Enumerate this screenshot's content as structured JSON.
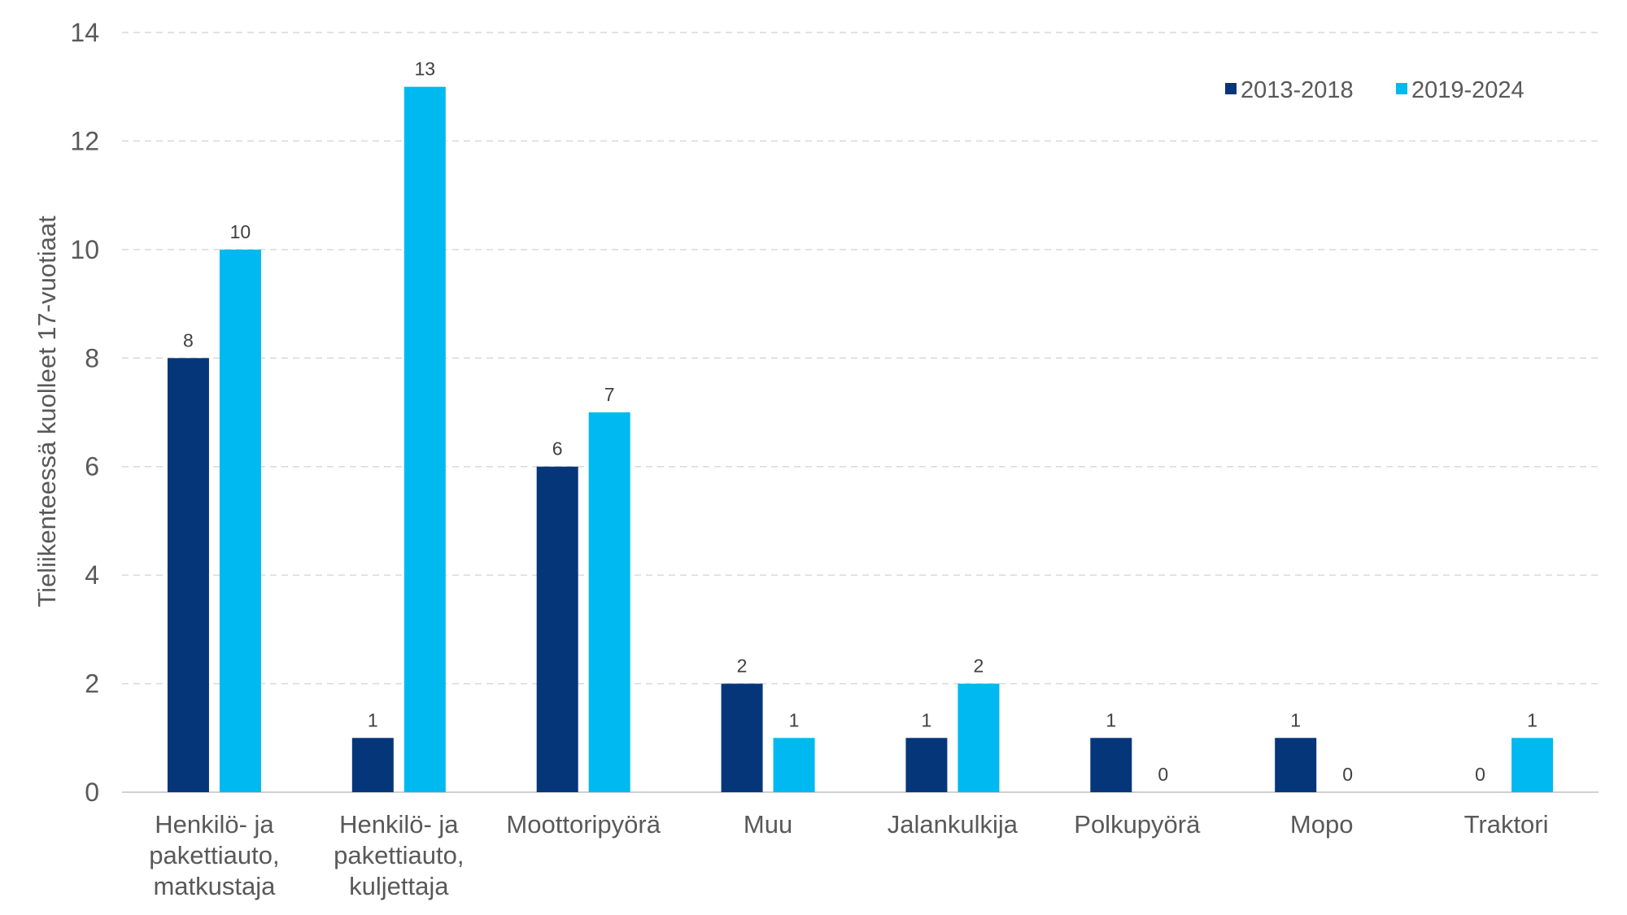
{
  "chart_data": {
    "type": "bar",
    "title": "",
    "xlabel": "",
    "ylabel": "Tieliikenteessä kuolleet 17-vuotiaat",
    "ylim": [
      0,
      14
    ],
    "yticks": [
      0,
      2,
      4,
      6,
      8,
      10,
      12,
      14
    ],
    "grid": true,
    "legend_position": "top-right",
    "categories": [
      [
        "Henkilö- ja",
        "pakettiauto,",
        "matkustaja"
      ],
      [
        "Henkilö- ja",
        "pakettiauto,",
        "kuljettaja"
      ],
      [
        "Moottoripyörä"
      ],
      [
        "Muu"
      ],
      [
        "Jalankulkija"
      ],
      [
        "Polkupyörä"
      ],
      [
        "Mopo"
      ],
      [
        "Traktori"
      ]
    ],
    "series": [
      {
        "name": "2013-2018",
        "color": "#06367A",
        "values": [
          8,
          1,
          6,
          2,
          1,
          1,
          1,
          0
        ]
      },
      {
        "name": "2019-2024",
        "color": "#00B9F0",
        "values": [
          10,
          13,
          7,
          1,
          2,
          0,
          0,
          1
        ]
      }
    ]
  }
}
